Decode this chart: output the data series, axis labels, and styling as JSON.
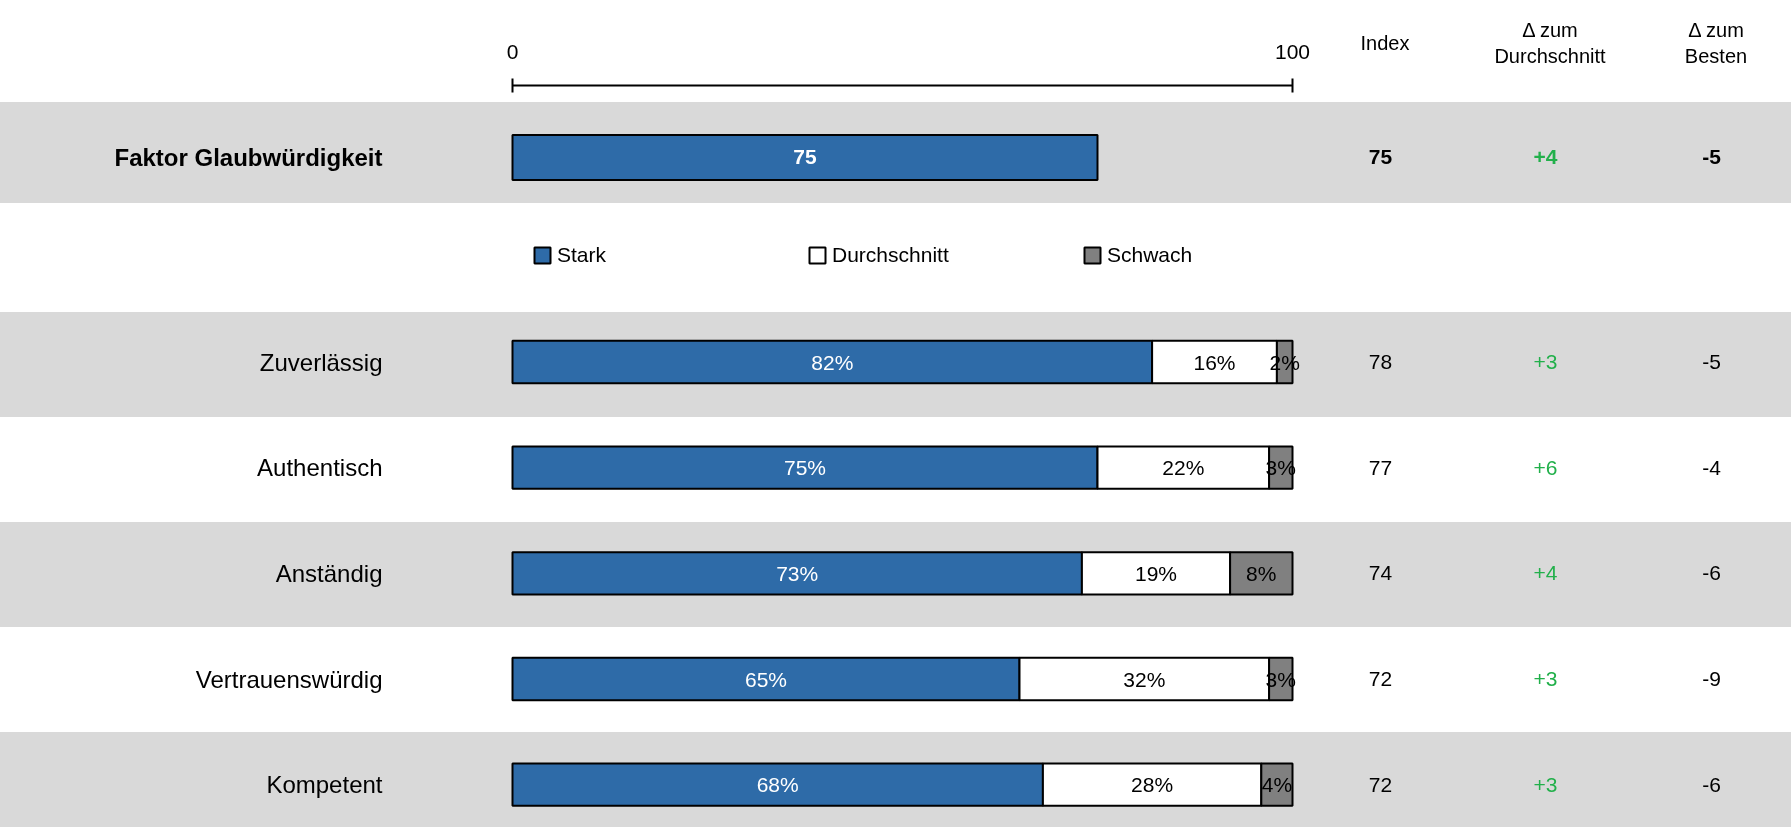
{
  "chart_data": [
    {
      "type": "bar",
      "orientation": "horizontal",
      "categories": [
        "Faktor Glaubwürdigkeit"
      ],
      "values": [
        75
      ],
      "color": "#2e6ba8",
      "xlim": [
        0,
        100
      ],
      "xticks": [
        0,
        100
      ],
      "data_labels": true,
      "annotations": [
        "Index",
        "Δ zum Durchschnitt",
        "Δ zum Besten",
        "75",
        "+4",
        "-5"
      ]
    },
    {
      "type": "bar",
      "orientation": "horizontal",
      "stacked": true,
      "categories": [
        "Zuverlässig",
        "Authentisch",
        "Anständig",
        "Vertrauenswürdig",
        "Kompetent"
      ],
      "series": [
        {
          "name": "Stark",
          "color": "#2e6ba8",
          "values": [
            82,
            75,
            73,
            65,
            68
          ],
          "value_labels": [
            "82%",
            "75%",
            "73%",
            "65%",
            "68%"
          ]
        },
        {
          "name": "Durchschnitt",
          "color": "#ffffff",
          "values": [
            16,
            22,
            19,
            32,
            28
          ],
          "value_labels": [
            "16%",
            "22%",
            "19%",
            "32%",
            "28%"
          ]
        },
        {
          "name": "Schwach",
          "color": "#808080",
          "values": [
            2,
            3,
            8,
            3,
            4
          ],
          "value_labels": [
            "2%",
            "3%",
            "8%",
            "3%",
            "4%"
          ]
        }
      ],
      "xlim": [
        0,
        100
      ],
      "tick_labels": "y",
      "legend": "top",
      "annotations": [
        "78",
        "+3",
        "-5",
        "77",
        "+6",
        "-4",
        "74",
        "+4",
        "-6",
        "72",
        "+3",
        "-9",
        "72",
        "+3",
        "-6"
      ]
    }
  ]
}
